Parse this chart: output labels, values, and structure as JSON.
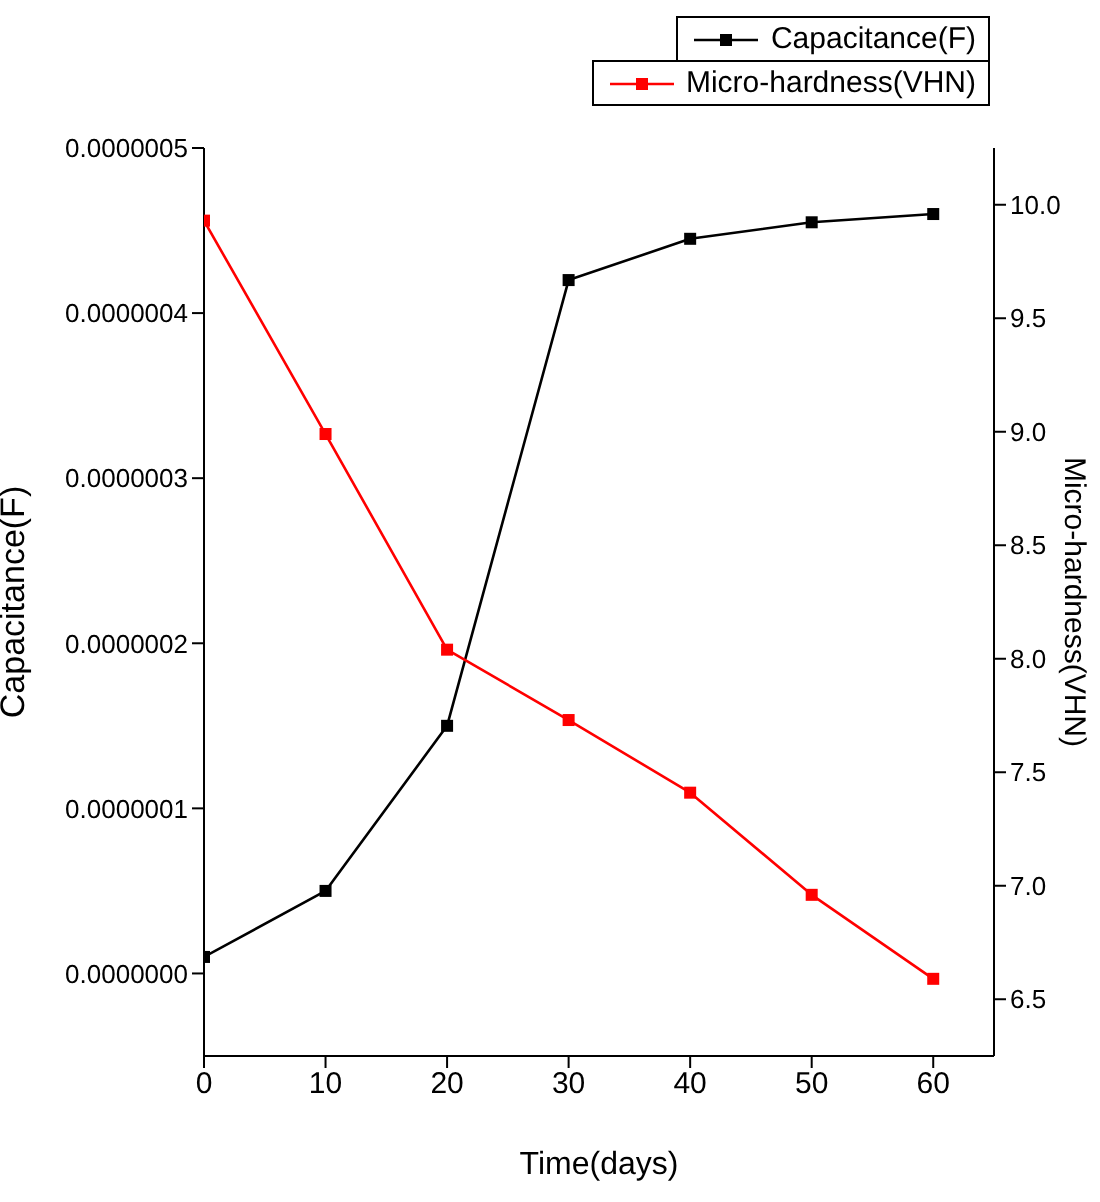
{
  "chart_data": {
    "type": "line",
    "xlabel": "Time(days)",
    "ylabel": "Capacitance(F)",
    "y2label": "Micro-hardness(VHN)",
    "x": [
      0,
      10,
      20,
      30,
      40,
      50,
      60
    ],
    "series": [
      {
        "name": "Capacitance(F)",
        "color": "#000000",
        "values": [
          1e-08,
          5e-08,
          1.5e-07,
          4.2e-07,
          4.45e-07,
          4.55e-07,
          4.6e-07
        ]
      },
      {
        "name": "Micro-hardness(VHN)",
        "color": "#ff0000",
        "axis": "y2",
        "values": [
          9.93,
          8.99,
          8.04,
          7.73,
          7.41,
          6.96,
          6.59
        ]
      }
    ],
    "xlim": [
      0,
      65
    ],
    "xticks": [
      0,
      10,
      20,
      30,
      40,
      50,
      60
    ],
    "ylim": [
      -5e-08,
      5e-07
    ],
    "yticks": [
      {
        "value": 0,
        "label": "0.0000000"
      },
      {
        "value": 1e-07,
        "label": "0.0000001"
      },
      {
        "value": 2e-07,
        "label": "0.0000002"
      },
      {
        "value": 3e-07,
        "label": "0.0000003"
      },
      {
        "value": 4e-07,
        "label": "0.0000004"
      },
      {
        "value": 5e-07,
        "label": "0.0000005"
      }
    ],
    "y2lim": [
      6.25,
      10.25
    ],
    "y2ticks": [
      6.5,
      {
        "value": 7,
        "label": "7.0"
      },
      7.5,
      {
        "value": 8,
        "label": "8.0"
      },
      8.5,
      {
        "value": 9,
        "label": "9.0"
      },
      9.5,
      {
        "value": 10,
        "label": "10.0"
      }
    ],
    "legend": "top right",
    "marker": "square",
    "line_style": "solid",
    "grid": false
  }
}
